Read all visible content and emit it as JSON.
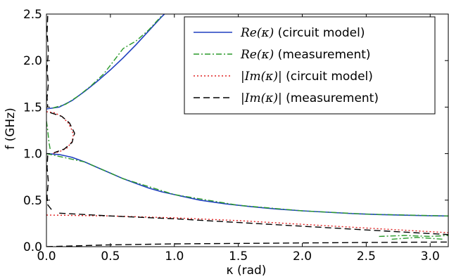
{
  "chart_data": {
    "type": "line",
    "title": "",
    "xlabel": "κ (rad)",
    "ylabel": "f (GHz)",
    "xlim": [
      0,
      3.14159
    ],
    "ylim": [
      0,
      2.5
    ],
    "xticks": [
      "0.0",
      "0.5",
      "1.0",
      "1.5",
      "2.0",
      "2.5",
      "3.0"
    ],
    "yticks": [
      "0.0",
      "0.5",
      "1.0",
      "1.5",
      "2.0",
      "2.5"
    ],
    "grid": false,
    "legend_position": "top-right",
    "legend": [
      {
        "math": "Re(κ)",
        "text": " (circuit model)"
      },
      {
        "math": "Re(κ)",
        "text": " (measurement)"
      },
      {
        "math": "|Im(κ)|",
        "text": " (circuit model)"
      },
      {
        "math": "|Im(κ)|",
        "text": " (measurement)"
      }
    ],
    "series": [
      {
        "name": "Re(κ) (circuit model)",
        "color": "#1f3fbf",
        "dash": "solid",
        "segments": [
          [
            [
              0,
              1.48
            ],
            [
              0.1,
              1.5
            ],
            [
              0.2,
              1.57
            ],
            [
              0.3,
              1.67
            ],
            [
              0.4,
              1.78
            ],
            [
              0.5,
              1.9
            ],
            [
              0.6,
              2.03
            ],
            [
              0.7,
              2.17
            ],
            [
              0.8,
              2.32
            ],
            [
              0.9,
              2.47
            ],
            [
              0.93,
              2.51
            ]
          ],
          [
            [
              0,
              1.0
            ],
            [
              0.1,
              0.99
            ],
            [
              0.2,
              0.96
            ],
            [
              0.3,
              0.91
            ],
            [
              0.4,
              0.85
            ],
            [
              0.5,
              0.79
            ],
            [
              0.6,
              0.73
            ],
            [
              0.7,
              0.68
            ],
            [
              0.8,
              0.63
            ],
            [
              0.9,
              0.59
            ],
            [
              1.0,
              0.56
            ],
            [
              1.2,
              0.5
            ],
            [
              1.4,
              0.46
            ],
            [
              1.6,
              0.43
            ],
            [
              1.8,
              0.405
            ],
            [
              2.0,
              0.385
            ],
            [
              2.2,
              0.37
            ],
            [
              2.4,
              0.355
            ],
            [
              2.6,
              0.345
            ],
            [
              2.8,
              0.338
            ],
            [
              3.0,
              0.332
            ],
            [
              3.14,
              0.33
            ]
          ]
        ]
      },
      {
        "name": "Re(κ) (measurement)",
        "color": "#2a9a2a",
        "dash": "dashdot",
        "segments": [
          [
            [
              0.05,
              1.49
            ],
            [
              0.15,
              1.53
            ],
            [
              0.25,
              1.62
            ],
            [
              0.35,
              1.73
            ],
            [
              0.45,
              1.86
            ],
            [
              0.55,
              2.04
            ],
            [
              0.6,
              2.13
            ],
            [
              0.7,
              2.21
            ],
            [
              0.8,
              2.33
            ],
            [
              0.9,
              2.48
            ]
          ],
          [
            [
              0.0,
              1.35
            ],
            [
              0.01,
              1.25
            ],
            [
              0.02,
              1.12
            ],
            [
              0.03,
              1.04
            ]
          ],
          [
            [
              0,
              1.0
            ],
            [
              0.3,
              0.91
            ],
            [
              0.6,
              0.73
            ],
            [
              1.0,
              0.56
            ],
            [
              1.5,
              0.445
            ],
            [
              2.0,
              0.385
            ],
            [
              2.5,
              0.35
            ],
            [
              3.14,
              0.33
            ]
          ],
          [
            [
              2.6,
              0.11
            ],
            [
              2.8,
              0.12
            ],
            [
              3.0,
              0.11
            ],
            [
              3.14,
              0.12
            ]
          ],
          [
            [
              2.7,
              0.08
            ],
            [
              2.9,
              0.1
            ],
            [
              3.1,
              0.08
            ]
          ]
        ]
      },
      {
        "name": "|Im(κ)| (circuit model)",
        "color": "#e02020",
        "dash": "dotted",
        "segments": [
          [
            [
              0,
              1.45
            ],
            [
              0.06,
              1.44
            ],
            [
              0.12,
              1.4
            ],
            [
              0.17,
              1.33
            ],
            [
              0.2,
              1.25
            ],
            [
              0.21,
              1.2
            ],
            [
              0.2,
              1.13
            ],
            [
              0.16,
              1.06
            ],
            [
              0.1,
              1.02
            ],
            [
              0.04,
              1.0
            ]
          ],
          [
            [
              0,
              0.34
            ],
            [
              0.5,
              0.33
            ],
            [
              1.0,
              0.31
            ],
            [
              1.5,
              0.28
            ],
            [
              2.0,
              0.24
            ],
            [
              2.5,
              0.2
            ],
            [
              3.14,
              0.15
            ]
          ]
        ]
      },
      {
        "name": "|Im(κ)| (measurement)",
        "color": "#000000",
        "dash": "dashed",
        "segments": [
          [
            [
              0.01,
              2.48
            ],
            [
              0.005,
              2.3
            ],
            [
              0.015,
              2.1
            ],
            [
              0.005,
              1.9
            ],
            [
              0.015,
              1.75
            ],
            [
              0.005,
              1.6
            ],
            [
              0.01,
              1.5
            ]
          ],
          [
            [
              0.03,
              1.44
            ],
            [
              0.12,
              1.4
            ],
            [
              0.18,
              1.33
            ],
            [
              0.22,
              1.22
            ],
            [
              0.2,
              1.12
            ],
            [
              0.14,
              1.05
            ],
            [
              0.06,
              1.01
            ]
          ],
          [
            [
              0.01,
              0.98
            ],
            [
              0.005,
              0.85
            ],
            [
              0.015,
              0.7
            ],
            [
              0.005,
              0.55
            ],
            [
              0.01,
              0.45
            ],
            [
              0.05,
              0.38
            ]
          ],
          [
            [
              0.1,
              0.36
            ],
            [
              0.5,
              0.33
            ],
            [
              1.0,
              0.3
            ],
            [
              1.5,
              0.26
            ],
            [
              2.0,
              0.22
            ],
            [
              2.5,
              0.18
            ],
            [
              3.14,
              0.13
            ]
          ],
          [
            [
              0,
              0.0
            ],
            [
              0.5,
              0.02
            ],
            [
              1.0,
              0.03
            ],
            [
              1.5,
              0.035
            ],
            [
              2.0,
              0.04
            ],
            [
              2.5,
              0.045
            ],
            [
              3.14,
              0.05
            ]
          ]
        ]
      }
    ]
  }
}
